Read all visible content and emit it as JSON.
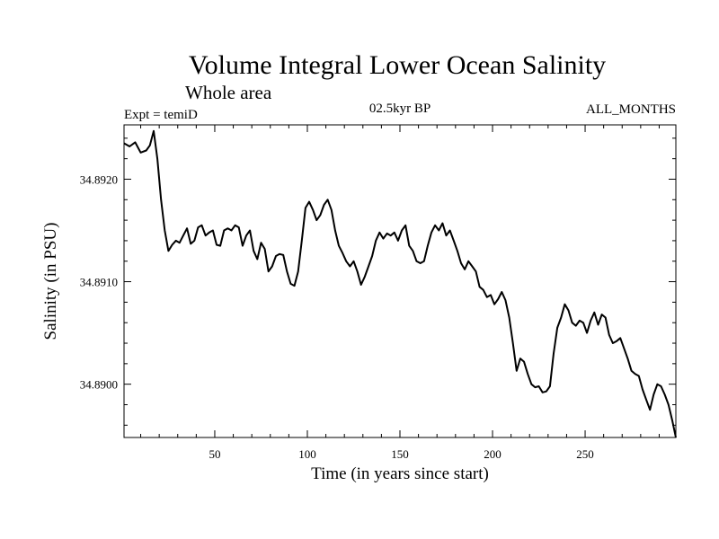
{
  "chart_data": {
    "type": "line",
    "title": "Volume Integral Lower Ocean Salinity",
    "subtitle": "Whole area",
    "label_left": "Expt = temiD",
    "label_center": "02.5kyr BP",
    "label_right": "ALL_MONTHS",
    "xlabel": "Time (in years since start)",
    "ylabel": "Salinity (in PSU)",
    "xlim": [
      1,
      299
    ],
    "ylim": [
      34.88948,
      34.89253
    ],
    "x_ticks": [
      50,
      100,
      150,
      200,
      250
    ],
    "x_tick_labels": [
      "50",
      "100",
      "150",
      "200",
      "250"
    ],
    "y_ticks": [
      34.89,
      34.891,
      34.892
    ],
    "y_tick_labels": [
      "34.8900",
      "34.8910",
      "34.8920"
    ],
    "series": [
      {
        "name": "salinity",
        "color": "#000000",
        "x": [
          1,
          4,
          7,
          10,
          13,
          15,
          17,
          19,
          21,
          23,
          25,
          27,
          29,
          31,
          33,
          35,
          37,
          39,
          41,
          43,
          45,
          47,
          49,
          51,
          53,
          55,
          57,
          59,
          61,
          63,
          65,
          67,
          69,
          71,
          73,
          75,
          77,
          79,
          81,
          83,
          85,
          87,
          89,
          91,
          93,
          95,
          97,
          99,
          101,
          103,
          105,
          107,
          109,
          111,
          113,
          115,
          117,
          119,
          121,
          123,
          125,
          127,
          129,
          131,
          133,
          135,
          137,
          139,
          141,
          143,
          145,
          147,
          149,
          151,
          153,
          155,
          157,
          159,
          161,
          163,
          165,
          167,
          169,
          171,
          173,
          175,
          177,
          179,
          181,
          183,
          185,
          187,
          189,
          191,
          193,
          195,
          197,
          199,
          201,
          203,
          205,
          207,
          209,
          211,
          213,
          215,
          217,
          219,
          221,
          223,
          225,
          227,
          229,
          231,
          233,
          235,
          237,
          239,
          241,
          243,
          245,
          247,
          249,
          251,
          253,
          255,
          257,
          259,
          261,
          263,
          265,
          267,
          269,
          271,
          273,
          275,
          277,
          279,
          281,
          283,
          285,
          287,
          289,
          291,
          293,
          295,
          297,
          299
        ],
        "values": [
          34.89235,
          34.89232,
          34.89236,
          34.89226,
          34.89228,
          34.89233,
          34.89247,
          34.8922,
          34.8918,
          34.8915,
          34.8913,
          34.89136,
          34.8914,
          34.89138,
          34.89145,
          34.89152,
          34.89137,
          34.8914,
          34.89153,
          34.89155,
          34.89145,
          34.89148,
          34.8915,
          34.89136,
          34.89135,
          34.8915,
          34.89152,
          34.8915,
          34.89155,
          34.89153,
          34.89135,
          34.89145,
          34.8915,
          34.8913,
          34.89122,
          34.89138,
          34.89132,
          34.8911,
          34.89115,
          34.89125,
          34.89127,
          34.89126,
          34.8911,
          34.89098,
          34.89096,
          34.8911,
          34.8914,
          34.89172,
          34.89178,
          34.8917,
          34.8916,
          34.89165,
          34.89175,
          34.8918,
          34.8917,
          34.8915,
          34.89135,
          34.89128,
          34.8912,
          34.89115,
          34.8912,
          34.8911,
          34.89097,
          34.89105,
          34.89115,
          34.89125,
          34.8914,
          34.89148,
          34.89142,
          34.89147,
          34.89145,
          34.89148,
          34.8914,
          34.8915,
          34.89155,
          34.89135,
          34.8913,
          34.8912,
          34.89118,
          34.8912,
          34.89135,
          34.89148,
          34.89155,
          34.8915,
          34.89157,
          34.89145,
          34.8915,
          34.8914,
          34.8913,
          34.89118,
          34.89112,
          34.8912,
          34.89115,
          34.8911,
          34.89095,
          34.89092,
          34.89085,
          34.89087,
          34.89078,
          34.89083,
          34.8909,
          34.89082,
          34.89065,
          34.8904,
          34.89013,
          34.89025,
          34.89022,
          34.8901,
          34.89,
          34.88997,
          34.88998,
          34.88992,
          34.88993,
          34.88998,
          34.8903,
          34.89055,
          34.89065,
          34.89078,
          34.89072,
          34.8906,
          34.89057,
          34.89062,
          34.8906,
          34.8905,
          34.89062,
          34.8907,
          34.89058,
          34.89068,
          34.89065,
          34.89048,
          34.8904,
          34.89042,
          34.89045,
          34.89035,
          34.89025,
          34.89013,
          34.8901,
          34.89008,
          34.88995,
          34.88985,
          34.88975,
          34.8899,
          34.89,
          34.88998,
          34.8899,
          34.8898,
          34.88965,
          34.88948
        ]
      }
    ]
  }
}
